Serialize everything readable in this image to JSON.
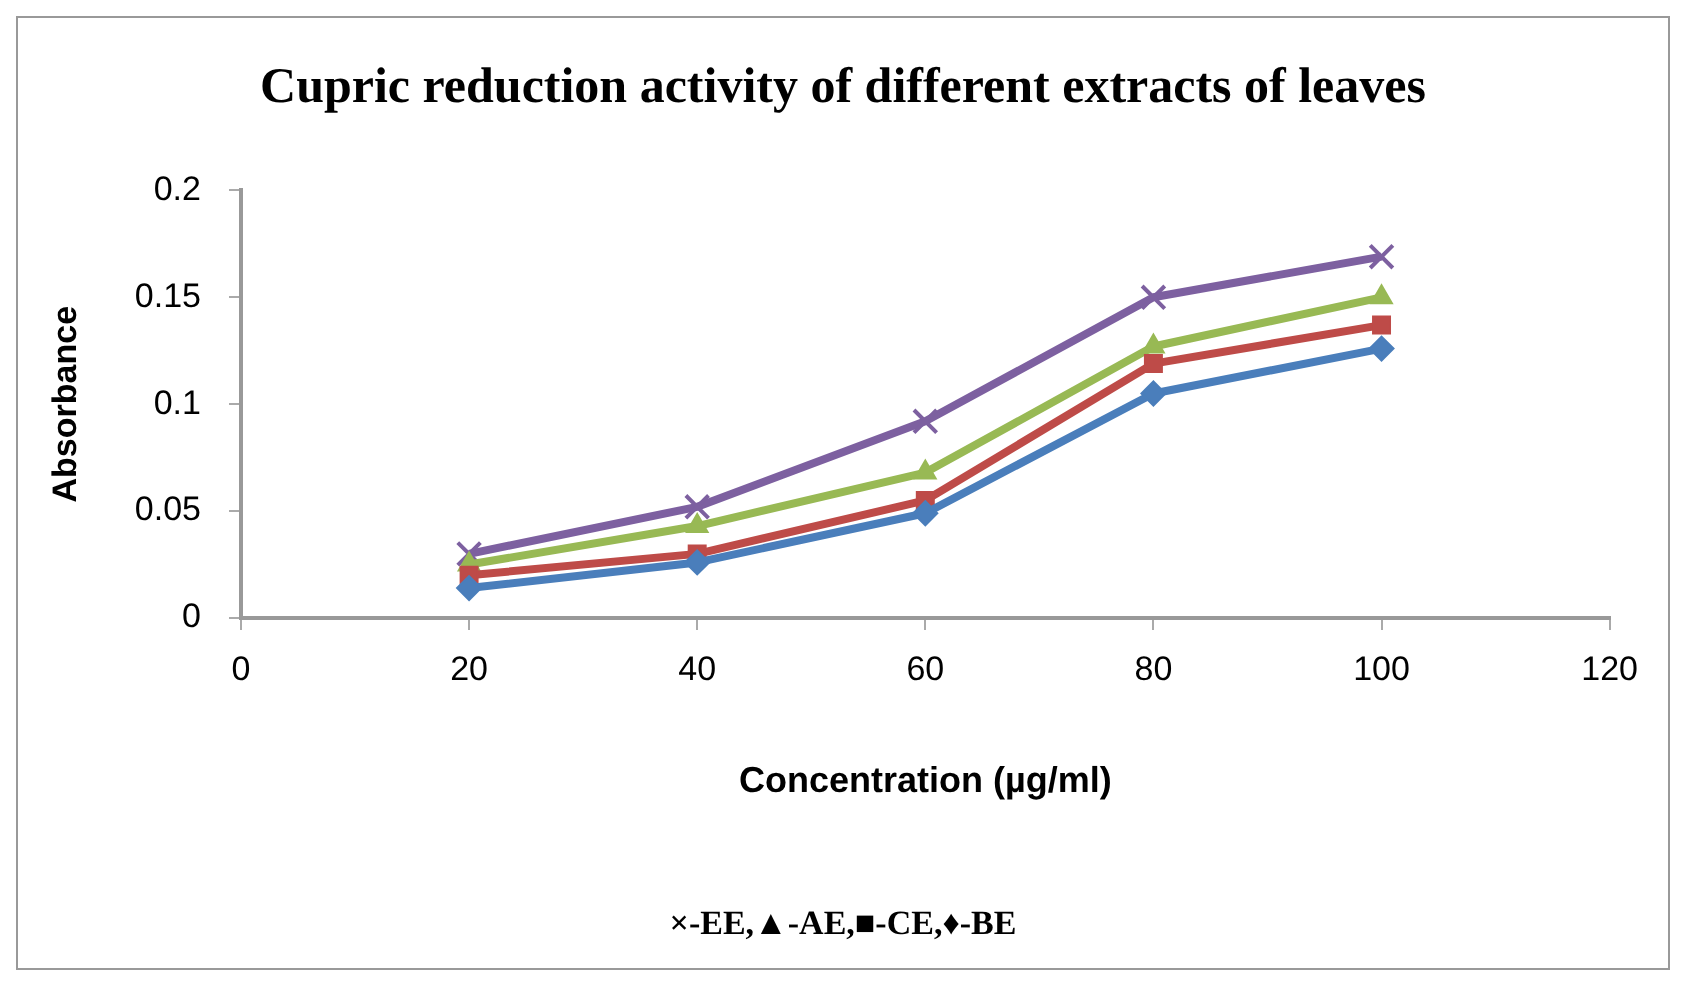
{
  "chart_data": {
    "type": "line",
    "title": "Cupric reduction activity of different extracts of  leaves",
    "xlabel": "Concentration (µg/ml)",
    "ylabel": "Absorbance",
    "annotations": [
      "×-EE,▲-AE,■-CE,♦-BE"
    ],
    "x": [
      20,
      40,
      60,
      80,
      100
    ],
    "xlim": [
      0,
      120
    ],
    "xticks": [
      0,
      20,
      40,
      60,
      80,
      100,
      120
    ],
    "ylim": [
      0,
      0.2
    ],
    "yticks": [
      0,
      0.05,
      0.1,
      0.15,
      0.2
    ],
    "grid": false,
    "legend": false,
    "line_style": "solid",
    "series": [
      {
        "color": "#4a7ebb",
        "marker": "diamond",
        "values": [
          0.014,
          0.026,
          0.049,
          0.105,
          0.126
        ]
      },
      {
        "color": "#be4b48",
        "marker": "square",
        "values": [
          0.02,
          0.03,
          0.055,
          0.119,
          0.137
        ]
      },
      {
        "color": "#98b954",
        "marker": "triangle",
        "values": [
          0.025,
          0.043,
          0.068,
          0.127,
          0.15
        ]
      },
      {
        "color": "#7d60a0",
        "marker": "cross",
        "values": [
          0.03,
          0.052,
          0.092,
          0.15,
          0.169
        ]
      }
    ]
  }
}
